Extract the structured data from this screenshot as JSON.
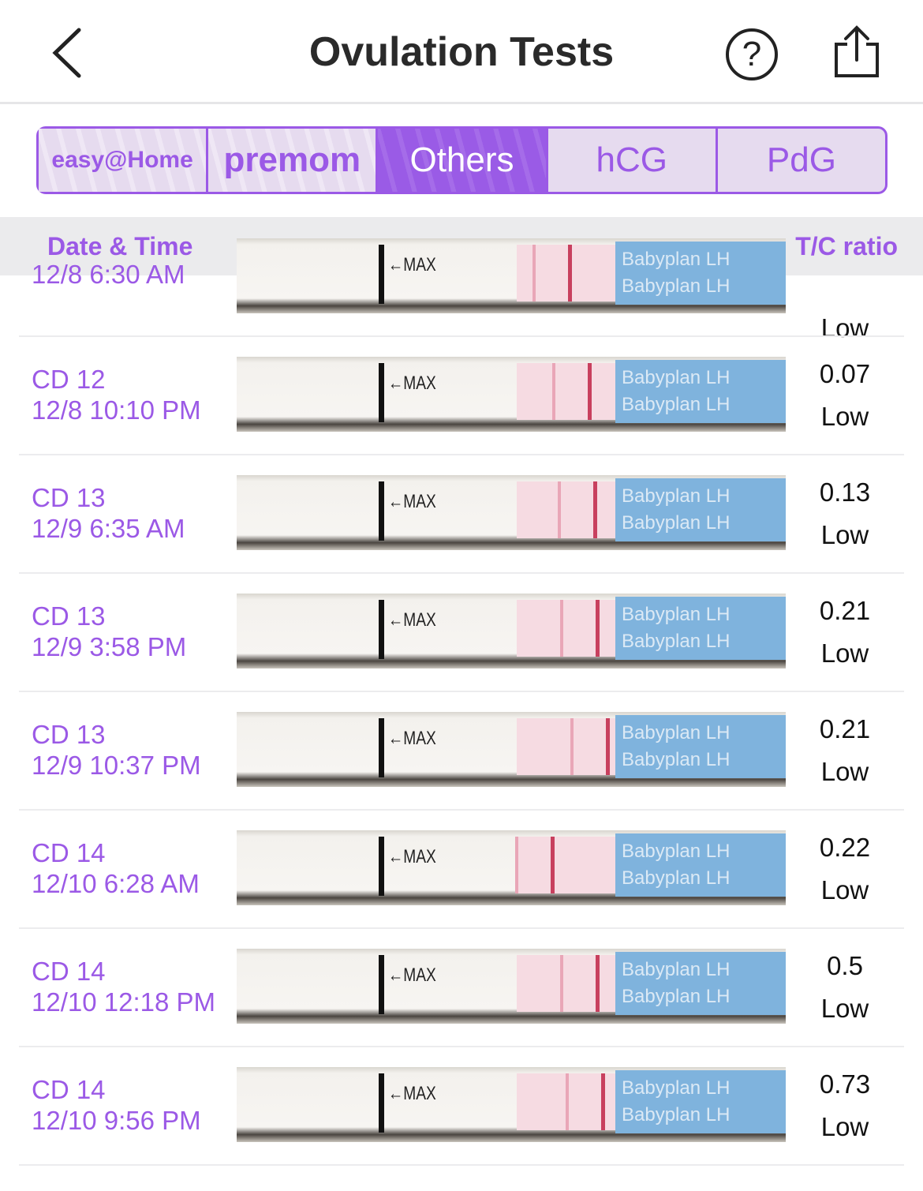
{
  "nav": {
    "title": "Ovulation Tests",
    "help_icon": "question-circle-icon",
    "share_icon": "share-icon",
    "back_icon": "chevron-left-icon"
  },
  "tabs": [
    {
      "label": "easy@Home",
      "active": false
    },
    {
      "label": "premom",
      "active": false
    },
    {
      "label": "Others",
      "active": true
    },
    {
      "label": "hCG",
      "active": false
    },
    {
      "label": "PdG",
      "active": false
    }
  ],
  "columns": {
    "left": "Date & Time",
    "right": "T/C ratio"
  },
  "strip_text": {
    "max": "←MAX",
    "brand": "Babyplan LH"
  },
  "colors": {
    "accent": "#9b59e6",
    "header_bg": "#ebebed"
  },
  "rows": [
    {
      "cd": "",
      "datetime": "12/8 6:30 AM",
      "ratio": "",
      "level": "Low"
    },
    {
      "cd": "CD 12",
      "datetime": "12/8 10:10 PM",
      "ratio": "0.07",
      "level": "Low"
    },
    {
      "cd": "CD 13",
      "datetime": "12/9 6:35 AM",
      "ratio": "0.13",
      "level": "Low"
    },
    {
      "cd": "CD 13",
      "datetime": "12/9 3:58 PM",
      "ratio": "0.21",
      "level": "Low"
    },
    {
      "cd": "CD 13",
      "datetime": "12/9 10:37 PM",
      "ratio": "0.21",
      "level": "Low"
    },
    {
      "cd": "CD 14",
      "datetime": "12/10 6:28 AM",
      "ratio": "0.22",
      "level": "Low"
    },
    {
      "cd": "CD 14",
      "datetime": "12/10 12:18 PM",
      "ratio": "0.5",
      "level": "Low"
    },
    {
      "cd": "CD 14",
      "datetime": "12/10 9:56 PM",
      "ratio": "0.73",
      "level": "Low"
    }
  ]
}
